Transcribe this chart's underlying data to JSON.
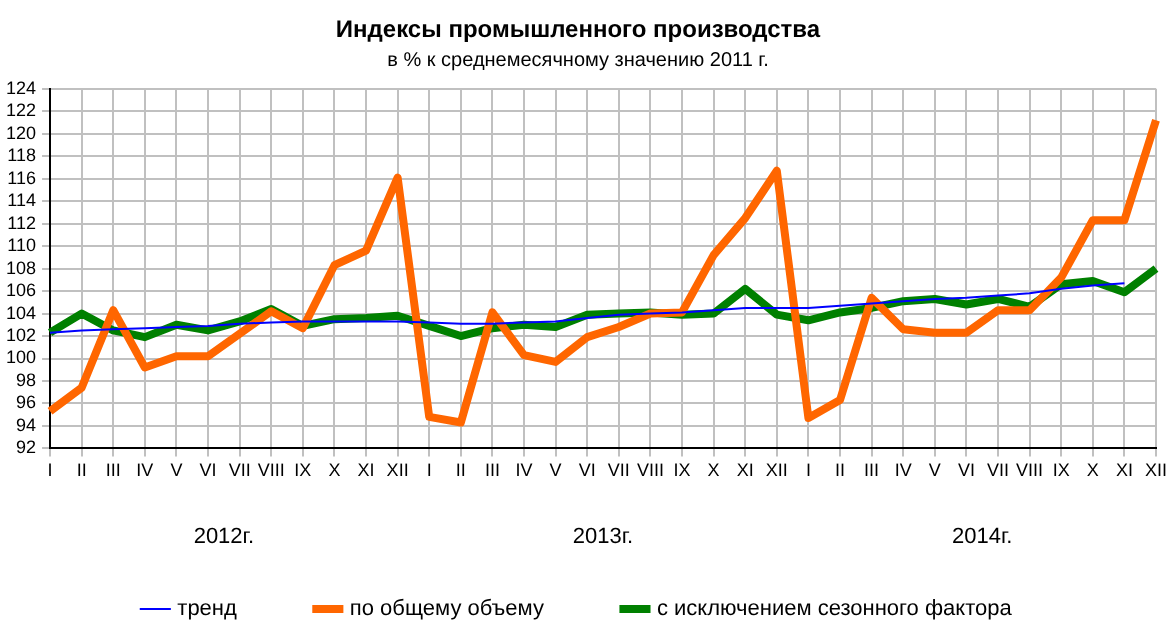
{
  "chart_data": {
    "type": "line",
    "title": "Индексы промышленного производства",
    "subtitle": "в % к среднемесячному значению 2011 г.",
    "categories": [
      "I",
      "II",
      "III",
      "IV",
      "V",
      "VI",
      "VII",
      "VIII",
      "IX",
      "X",
      "XI",
      "XII",
      "I",
      "II",
      "III",
      "IV",
      "V",
      "VI",
      "VII",
      "VIII",
      "IX",
      "X",
      "XI",
      "XII",
      "I",
      "II",
      "III",
      "IV",
      "V",
      "VI",
      "VII",
      "VIII",
      "IX",
      "X",
      "XI",
      "XII"
    ],
    "series": [
      {
        "name": "по общему объему",
        "color": "#ff6600",
        "values": [
          95.3,
          97.4,
          104.3,
          99.2,
          100.2,
          100.2,
          102.2,
          104.2,
          102.7,
          108.3,
          109.6,
          116.1,
          94.8,
          94.3,
          104.1,
          100.3,
          99.7,
          101.9,
          102.8,
          104.0,
          104.1,
          109.2,
          112.5,
          116.7,
          94.7,
          96.3,
          105.4,
          102.6,
          102.3,
          102.3,
          104.3,
          104.3,
          107.2,
          112.3,
          112.3,
          121.2
        ]
      },
      {
        "name": "с исключением сезонного фактора",
        "color": "#008000",
        "values": [
          102.3,
          104.0,
          102.5,
          101.9,
          103.0,
          102.5,
          103.3,
          104.4,
          102.9,
          103.5,
          103.6,
          103.8,
          102.9,
          102.0,
          102.7,
          103.0,
          102.8,
          103.9,
          104.0,
          104.1,
          103.9,
          104.0,
          106.2,
          103.9,
          103.4,
          104.1,
          104.5,
          105.1,
          105.3,
          104.8,
          105.3,
          104.6,
          106.6,
          106.9,
          105.9,
          108.0
        ]
      },
      {
        "name": "тренд",
        "color": "#0000ff",
        "values": [
          102.3,
          102.5,
          102.6,
          102.7,
          102.8,
          102.9,
          103.1,
          103.2,
          103.3,
          103.3,
          103.3,
          103.3,
          103.2,
          103.1,
          103.1,
          103.2,
          103.3,
          103.6,
          103.9,
          104.0,
          104.1,
          104.3,
          104.5,
          104.5,
          104.5,
          104.7,
          104.9,
          105.1,
          105.3,
          105.4,
          105.6,
          105.8,
          106.2,
          106.5,
          106.7,
          null
        ]
      }
    ],
    "annotations": [
      "2012г.",
      "2013г.",
      "2014г."
    ],
    "ylim": [
      92,
      124
    ],
    "yticks": [
      92,
      94,
      96,
      98,
      100,
      102,
      104,
      106,
      108,
      110,
      112,
      114,
      116,
      118,
      120,
      122,
      124
    ],
    "grid": true,
    "legend": "bottom",
    "marker": "none",
    "line_style": "solid"
  }
}
